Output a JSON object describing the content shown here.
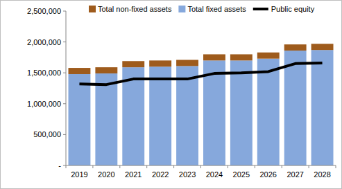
{
  "chart_data": {
    "type": "bar",
    "stacked": true,
    "grid": false,
    "legend": "top",
    "categories": [
      "2019",
      "2020",
      "2021",
      "2022",
      "2023",
      "2024",
      "2025",
      "2026",
      "2027",
      "2028"
    ],
    "series": [
      {
        "name": "Total fixed assets",
        "type": "bar",
        "color": "#86a8dc",
        "values": [
          1480000,
          1490000,
          1590000,
          1600000,
          1610000,
          1700000,
          1700000,
          1730000,
          1860000,
          1870000
        ]
      },
      {
        "name": "Total non-fixed assets",
        "type": "bar",
        "color": "#9e5b1c",
        "values": [
          100000,
          100000,
          100000,
          100000,
          100000,
          100000,
          100000,
          100000,
          100000,
          100000
        ]
      },
      {
        "name": "Public equity",
        "type": "line",
        "color": "#000000",
        "values": [
          1320000,
          1310000,
          1400000,
          1400000,
          1400000,
          1490000,
          1500000,
          1520000,
          1650000,
          1660000
        ]
      }
    ],
    "ylim": [
      0,
      2500000
    ],
    "yticks": [
      {
        "value": 0,
        "label": "-"
      },
      {
        "value": 500000,
        "label": "500,000"
      },
      {
        "value": 1000000,
        "label": "1,000,000"
      },
      {
        "value": 1500000,
        "label": "1,500,000"
      },
      {
        "value": 2000000,
        "label": "2,000,000"
      },
      {
        "value": 2500000,
        "label": "2,500,000"
      }
    ]
  }
}
